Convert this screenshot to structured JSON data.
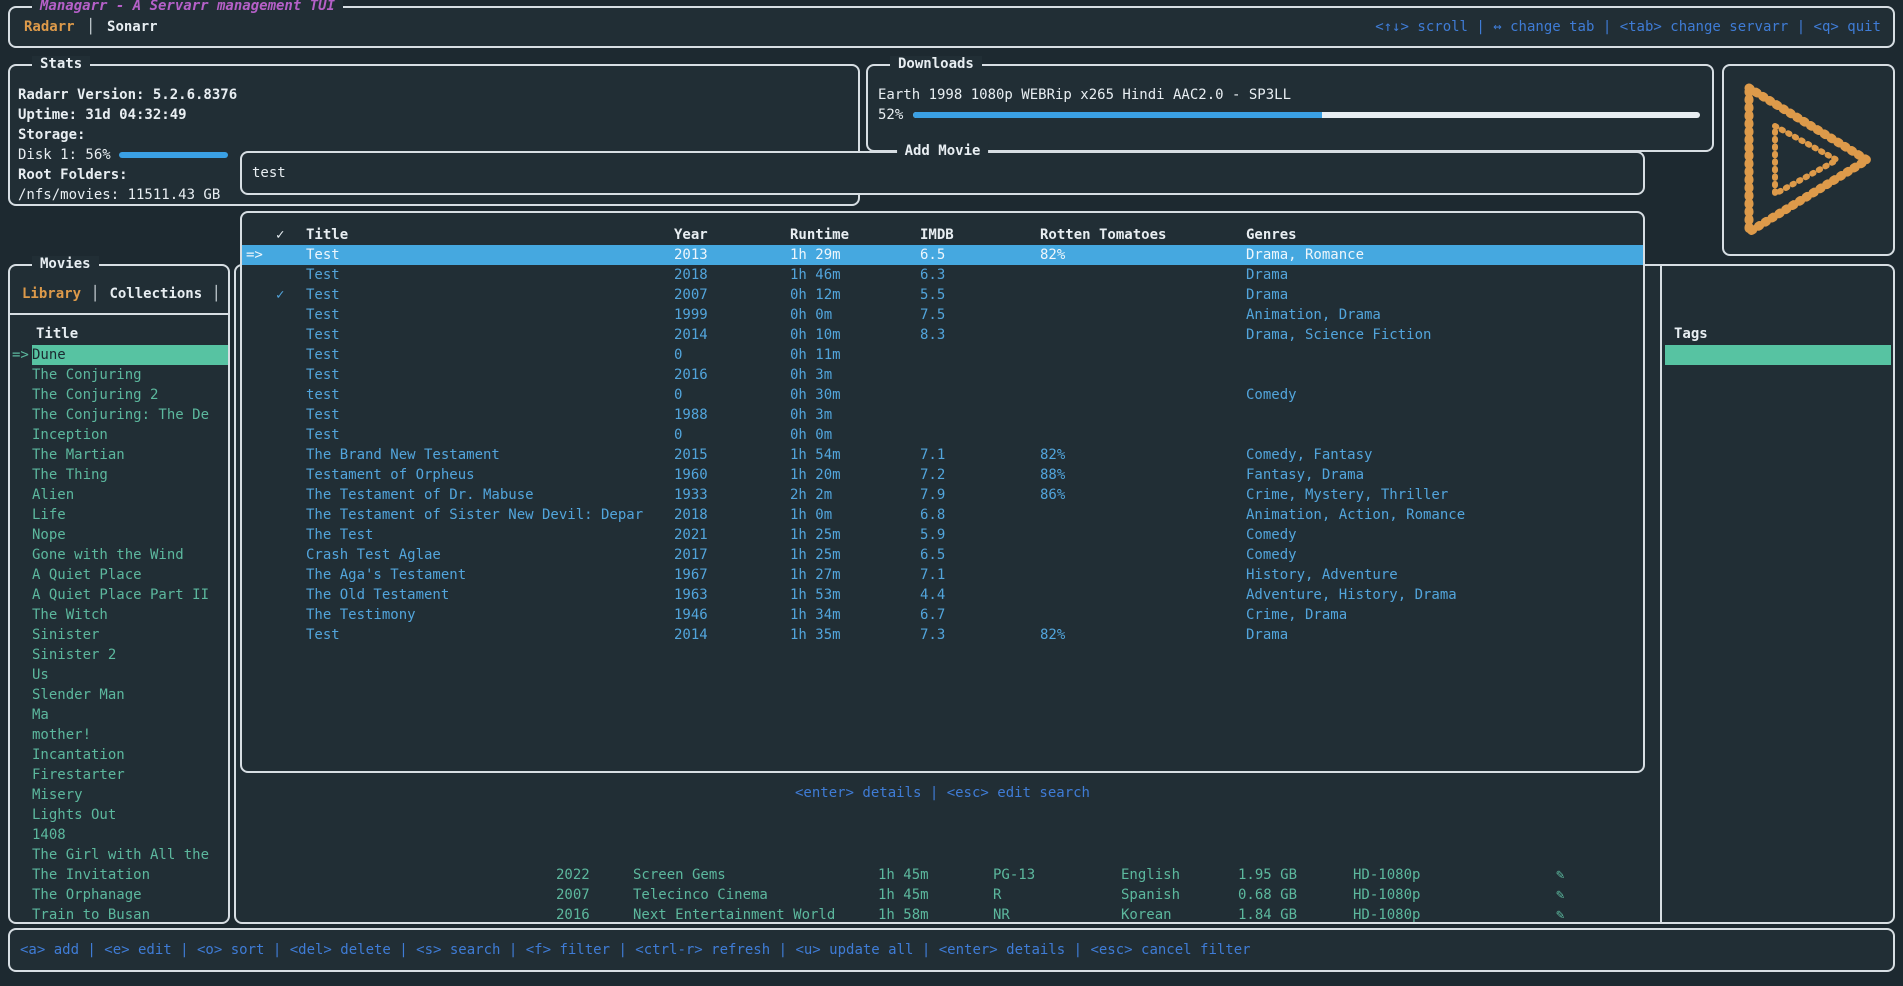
{
  "app": {
    "title": "Managarr - A Servarr management TUI",
    "tabs": [
      {
        "label": "Radarr"
      },
      {
        "label": "Sonarr"
      }
    ],
    "tab_separator": "│",
    "top_keybar": "<↑↓> scroll | ↔ change tab | <tab> change servarr | <q> quit",
    "bottom_keybar": "<a> add | <e> edit | <o> sort | <del> delete | <s> search | <f> filter | <ctrl-r> refresh | <u> update all | <enter> details | <esc> cancel filter"
  },
  "stats": {
    "title": "Stats",
    "version_line": "Radarr Version:  5.2.6.8376",
    "uptime_line": "Uptime: 31d 04:32:49",
    "storage_label": "Storage:",
    "disk_line": "Disk 1: 56%",
    "disk_percent_value": 56,
    "root_folders_label": "Root Folders:",
    "root_folder_line": "/nfs/movies: 11511.43 GB"
  },
  "downloads": {
    "title": "Downloads",
    "item": "Earth 1998 1080p WEBRip x265 Hindi AAC2.0 - SP3LL",
    "percent_label": "52%",
    "percent_value": 52
  },
  "movies_panel": {
    "title": "Movies",
    "tabs": [
      {
        "label": "Library"
      },
      {
        "label": "Collections"
      }
    ],
    "column_header": "Title",
    "items": [
      {
        "title": "Dune",
        "prefix": "=>",
        "selected": true
      },
      {
        "title": "The Conjuring"
      },
      {
        "title": "The Conjuring 2"
      },
      {
        "title": "The Conjuring: The De"
      },
      {
        "title": "Inception"
      },
      {
        "title": "The Martian"
      },
      {
        "title": "The Thing"
      },
      {
        "title": "Alien"
      },
      {
        "title": "Life"
      },
      {
        "title": "Nope"
      },
      {
        "title": "Gone with the Wind"
      },
      {
        "title": "A Quiet Place"
      },
      {
        "title": "A Quiet Place Part II"
      },
      {
        "title": "The Witch"
      },
      {
        "title": "Sinister"
      },
      {
        "title": "Sinister 2"
      },
      {
        "title": "Us"
      },
      {
        "title": "Slender Man"
      },
      {
        "title": "Ma"
      },
      {
        "title": "mother!"
      },
      {
        "title": "Incantation"
      },
      {
        "title": "Firestarter"
      },
      {
        "title": "Misery"
      },
      {
        "title": "Lights Out"
      },
      {
        "title": "1408"
      },
      {
        "title": "The Girl with All the"
      },
      {
        "title": "The Invitation"
      },
      {
        "title": "The Orphanage"
      },
      {
        "title": "Train to Busan"
      }
    ]
  },
  "tags_panel": {
    "title": "Tags"
  },
  "add_movie": {
    "title": "Add Movie",
    "search_value": "test",
    "help": "<enter> details | <esc> edit search",
    "columns": [
      "✓",
      "Title",
      "Year",
      "Runtime",
      "IMDB",
      "Rotten Tomatoes",
      "Genres"
    ],
    "rows": [
      {
        "prefix": "=>",
        "check": "",
        "title": "Test",
        "year": "2013",
        "runtime": "1h 29m",
        "imdb": "6.5",
        "rt": "82%",
        "genres": "Drama, Romance",
        "selected": true
      },
      {
        "check": "",
        "title": "Test",
        "year": "2018",
        "runtime": "1h 46m",
        "imdb": "6.3",
        "rt": "",
        "genres": "Drama"
      },
      {
        "check": "✓",
        "title": "Test",
        "year": "2007",
        "runtime": "0h 12m",
        "imdb": "5.5",
        "rt": "",
        "genres": "Drama"
      },
      {
        "check": "",
        "title": "Test",
        "year": "1999",
        "runtime": "0h 0m",
        "imdb": "7.5",
        "rt": "",
        "genres": "Animation, Drama"
      },
      {
        "check": "",
        "title": "Test",
        "year": "2014",
        "runtime": "0h 10m",
        "imdb": "8.3",
        "rt": "",
        "genres": "Drama, Science Fiction"
      },
      {
        "check": "",
        "title": "Test",
        "year": "0",
        "runtime": "0h 11m",
        "imdb": "",
        "rt": "",
        "genres": ""
      },
      {
        "check": "",
        "title": "Test",
        "year": "2016",
        "runtime": "0h 3m",
        "imdb": "",
        "rt": "",
        "genres": ""
      },
      {
        "check": "",
        "title": "test",
        "year": "0",
        "runtime": "0h 30m",
        "imdb": "",
        "rt": "",
        "genres": "Comedy"
      },
      {
        "check": "",
        "title": "Test",
        "year": "1988",
        "runtime": "0h 3m",
        "imdb": "",
        "rt": "",
        "genres": ""
      },
      {
        "check": "",
        "title": "Test",
        "year": "0",
        "runtime": "0h 0m",
        "imdb": "",
        "rt": "",
        "genres": ""
      },
      {
        "check": "",
        "title": "The Brand New Testament",
        "year": "2015",
        "runtime": "1h 54m",
        "imdb": "7.1",
        "rt": "82%",
        "genres": "Comedy, Fantasy"
      },
      {
        "check": "",
        "title": "Testament of Orpheus",
        "year": "1960",
        "runtime": "1h 20m",
        "imdb": "7.2",
        "rt": "88%",
        "genres": "Fantasy, Drama"
      },
      {
        "check": "",
        "title": "The Testament of Dr. Mabuse",
        "year": "1933",
        "runtime": "2h 2m",
        "imdb": "7.9",
        "rt": "86%",
        "genres": "Crime, Mystery, Thriller"
      },
      {
        "check": "",
        "title": "The Testament of Sister New Devil: Depar",
        "year": "2018",
        "runtime": "1h 0m",
        "imdb": "6.8",
        "rt": "",
        "genres": "Animation, Action, Romance"
      },
      {
        "check": "",
        "title": "The Test",
        "year": "2021",
        "runtime": "1h 25m",
        "imdb": "5.9",
        "rt": "",
        "genres": "Comedy"
      },
      {
        "check": "",
        "title": "Crash Test Aglae",
        "year": "2017",
        "runtime": "1h 25m",
        "imdb": "6.5",
        "rt": "",
        "genres": "Comedy"
      },
      {
        "check": "",
        "title": "The Aga's Testament",
        "year": "1967",
        "runtime": "1h 27m",
        "imdb": "7.1",
        "rt": "",
        "genres": "History, Adventure"
      },
      {
        "check": "",
        "title": "The Old Testament",
        "year": "1963",
        "runtime": "1h 53m",
        "imdb": "4.4",
        "rt": "",
        "genres": "Adventure, History, Drama"
      },
      {
        "check": "",
        "title": "The Testimony",
        "year": "1946",
        "runtime": "1h 34m",
        "imdb": "6.7",
        "rt": "",
        "genres": "Crime, Drama"
      },
      {
        "check": "",
        "title": "Test",
        "year": "2014",
        "runtime": "1h 35m",
        "imdb": "7.3",
        "rt": "82%",
        "genres": "Drama"
      }
    ]
  },
  "background_rows": [
    {
      "year": "2022",
      "studio": "Screen Gems",
      "runtime": "1h 45m",
      "certification": "PG-13",
      "language": "English",
      "size": "1.95 GB",
      "quality": "HD-1080p",
      "icon": "✎"
    },
    {
      "year": "2007",
      "studio": "Telecinco Cinema",
      "runtime": "1h 45m",
      "certification": "R",
      "language": "Spanish",
      "size": "0.68 GB",
      "quality": "HD-1080p",
      "icon": "✎"
    },
    {
      "year": "2016",
      "studio": "Next Entertainment World",
      "runtime": "1h 58m",
      "certification": "NR",
      "language": "Korean",
      "size": "1.84 GB",
      "quality": "HD-1080p",
      "icon": "✎"
    }
  ],
  "colors": {
    "background": "#212e35",
    "border": "#d7dee3",
    "accent_orange": "#dd9a4a",
    "accent_purple": "#b560c8",
    "key_blue": "#3f7cd6",
    "row_blue": "#52a5dc",
    "selected_blue": "#45a8e0",
    "teal": "#5cb89e",
    "selected_green": "#57c3a2",
    "progress_blue": "#3aa0e4"
  }
}
